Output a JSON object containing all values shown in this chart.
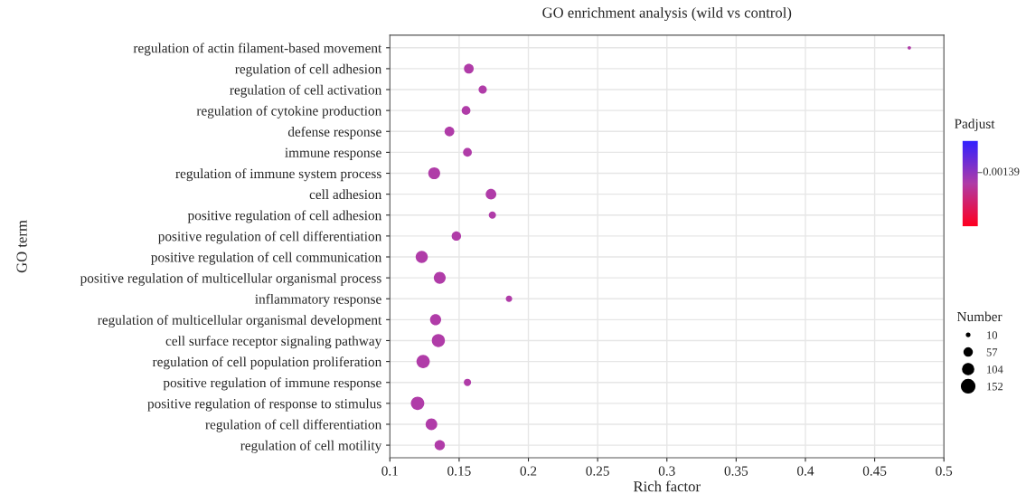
{
  "chart_data": {
    "type": "bubble",
    "title": "GO enrichment analysis (wild vs control)",
    "xlabel": "Rich factor",
    "ylabel": "GO term",
    "clabel": "Padjust",
    "legend_title": "Number",
    "categories": [
      "regulation of actin filament-based movement",
      "regulation of cell adhesion",
      "regulation of cell activation",
      "regulation of cytokine production",
      "defense response",
      "immune response",
      "regulation of immune system process",
      "cell adhesion",
      "positive regulation of cell adhesion",
      "positive regulation of cell differentiation",
      "positive regulation of cell communication",
      "positive regulation of multicellular organismal process",
      "inflammatory response",
      "regulation of multicellular organismal development",
      "cell surface receptor signaling pathway",
      "regulation of cell population proliferation",
      "positive regulation of immune response",
      "positive regulation of response to stimulus",
      "regulation of cell differentiation",
      "regulation of cell motility"
    ],
    "orientation": "horizontal",
    "series": [
      {
        "color": "#b03ca8",
        "values": [
          0.475,
          0.157,
          0.167,
          0.155,
          0.143,
          0.156,
          0.132,
          0.173,
          0.174,
          0.148,
          0.123,
          0.136,
          0.186,
          0.133,
          0.135,
          0.124,
          0.156,
          0.12,
          0.13,
          0.136
        ],
        "sizes": [
          10,
          80,
          57,
          65,
          80,
          65,
          120,
          95,
          45,
          75,
          125,
          120,
          35,
          105,
          145,
          150,
          45,
          152,
          115,
          90
        ]
      }
    ],
    "size_legend": [
      10,
      57,
      104,
      152
    ],
    "xlim": [
      0.1,
      0.5
    ],
    "xticks": [
      0.1,
      0.15,
      0.2,
      0.25,
      0.3,
      0.35,
      0.4,
      0.45,
      0.5
    ],
    "annotations": [
      "0.00139"
    ],
    "grid": true
  }
}
